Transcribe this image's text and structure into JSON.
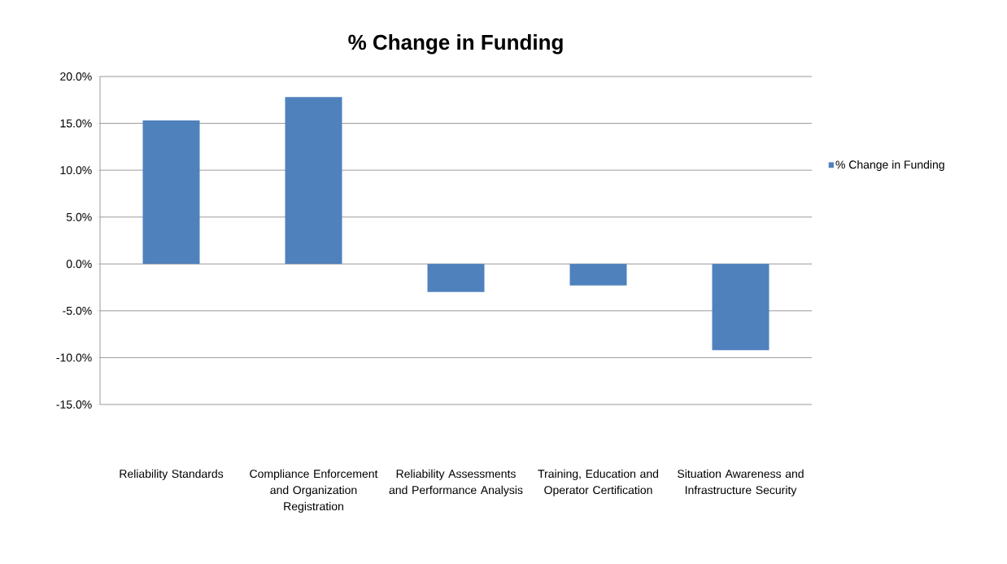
{
  "chart_data": {
    "type": "bar",
    "title": "% Change in Funding",
    "categories": [
      "Reliability Standards",
      "Compliance Enforcement and Organization Registration",
      "Reliability Assessments and Performance Analysis",
      "Training, Education and Operator Certification",
      "Situation Awareness and Infrastructure Security"
    ],
    "series": [
      {
        "name": "% Change in Funding",
        "color": "#4f81bd",
        "values": [
          15.3,
          17.8,
          -3.0,
          -2.3,
          -9.2
        ]
      }
    ],
    "ylim": [
      -15,
      20
    ],
    "yticks": [
      {
        "value": -15,
        "label": "-15.0%"
      },
      {
        "value": -10,
        "label": "-10.0%"
      },
      {
        "value": -5,
        "label": "-5.0%"
      },
      {
        "value": 0,
        "label": "0.0%"
      },
      {
        "value": 5,
        "label": "5.0%"
      },
      {
        "value": 10,
        "label": "10.0%"
      },
      {
        "value": 15,
        "label": "15.0%"
      },
      {
        "value": 20,
        "label": "20.0%"
      }
    ],
    "grid": "y",
    "legend": "right"
  }
}
